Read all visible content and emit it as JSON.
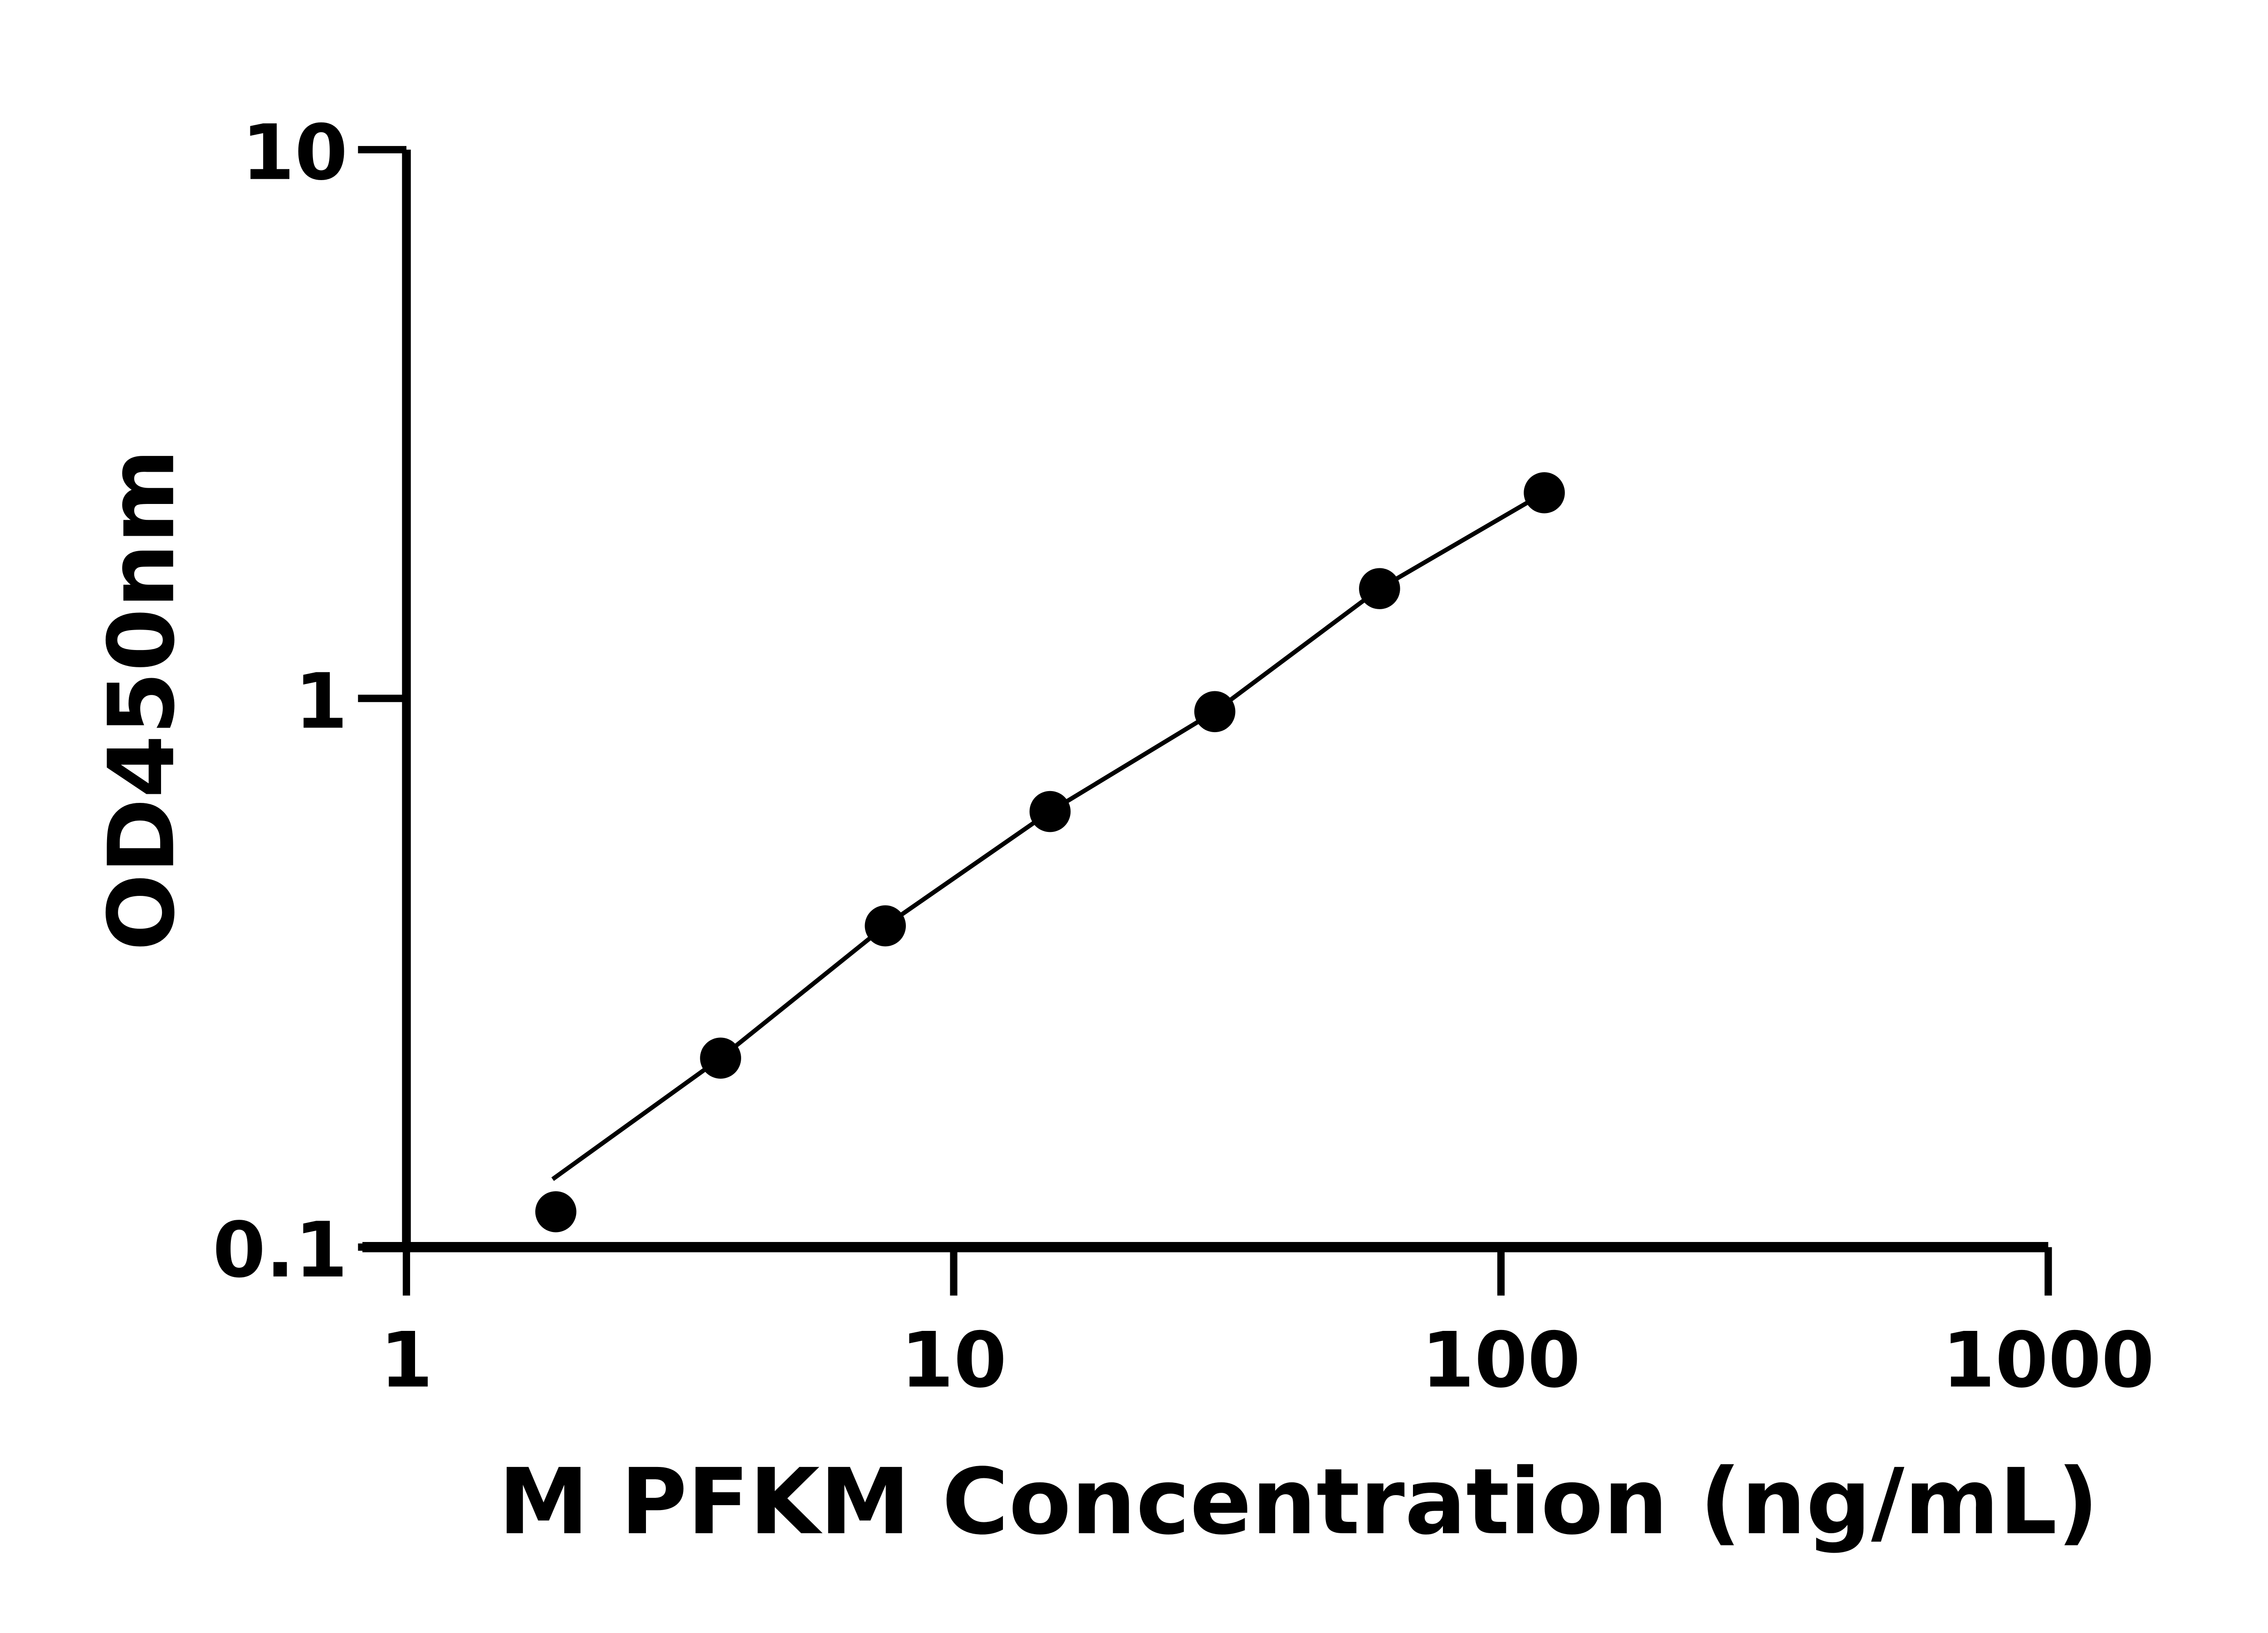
{
  "chart_data": {
    "type": "scatter",
    "title": "",
    "xlabel": "M PFKM Concentration (ng/mL)",
    "ylabel": "OD450nm",
    "xscale": "log",
    "yscale": "log",
    "xlim": [
      1,
      1000
    ],
    "ylim": [
      0.1,
      10
    ],
    "xticks": [
      "1",
      "10",
      "100",
      "1000"
    ],
    "yticks": [
      "0.1",
      "1",
      "10"
    ],
    "grid": false,
    "colors": {
      "points": "#000000",
      "line": "#000000",
      "axes": "#000000"
    },
    "series": [
      {
        "x": [
          1.875,
          3.75,
          7.5,
          15,
          30,
          60,
          120
        ],
        "y": [
          0.116,
          0.221,
          0.385,
          0.622,
          0.946,
          1.585,
          2.37
        ],
        "fit": "curve"
      }
    ]
  }
}
